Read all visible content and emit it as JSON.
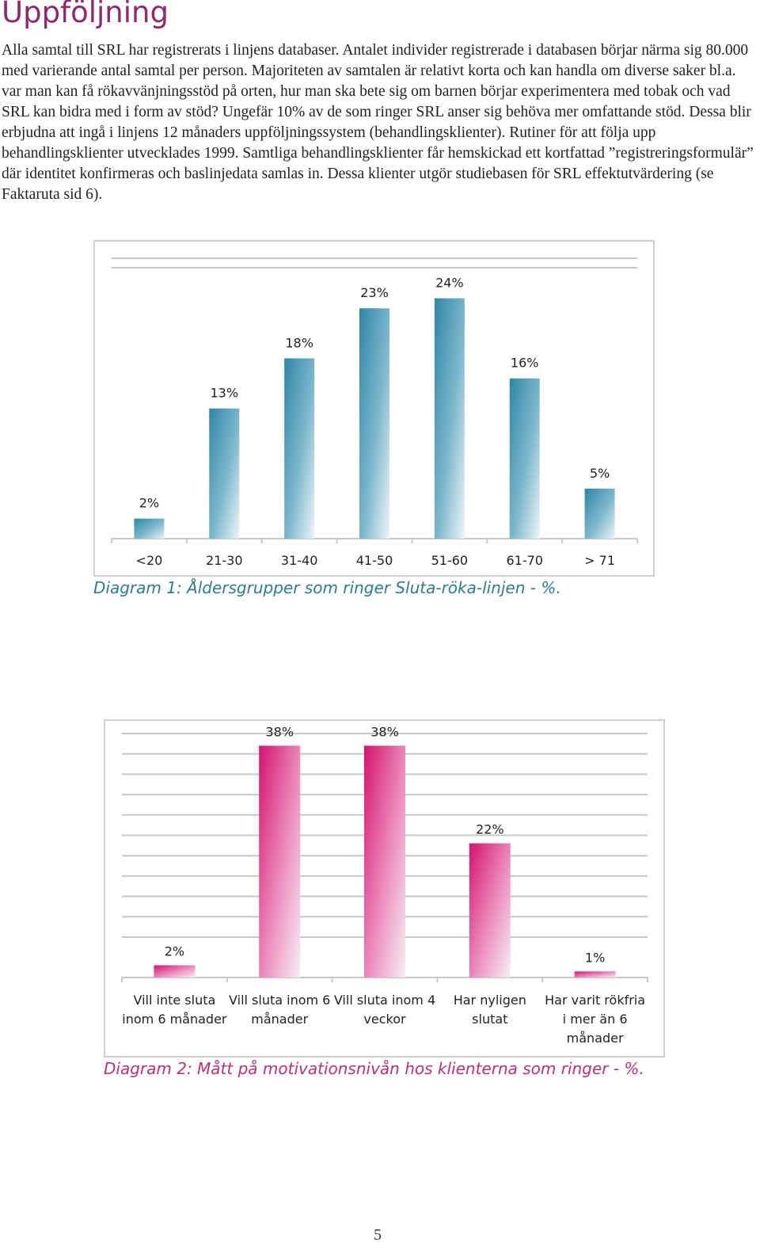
{
  "page": {
    "title": "Uppföljning",
    "paragraph": "Alla samtal till SRL har registrerats i linjens databaser. Antalet individer registrerade i databasen börjar närma sig 80.000 med varierande antal samtal per person. Majoriteten av samtalen är relativt korta och kan handla om diverse saker bl.a. var man kan få rökavvänjningsstöd på orten, hur man ska bete sig om barnen börjar experimentera med tobak och vad SRL kan bidra med i form av stöd? Ungefär 10% av de som ringer SRL anser sig behöva mer omfattande stöd. Dessa blir erbjudna att ingå i linjens 12 månaders uppföljningssystem (behandlingsklienter). Rutiner för att följa upp behandlingsklienter utvecklades 1999. Samtliga behandlingsklienter får hemskickad ett kortfattad ”registreringsformulär” där identitet konfirmeras och baslinjedata samlas in. Dessa klienter utgör studiebasen för SRL effektutvärdering (se Faktaruta sid 6).",
    "page_number": "5"
  },
  "chart_data": [
    {
      "type": "bar",
      "title": "",
      "caption": "Diagram 1: Åldersgrupper som ringer Sluta-röka-linjen - %.",
      "categories": [
        "<20",
        "21-30",
        "31-40",
        "41-50",
        "51-60",
        "61-70",
        "> 71"
      ],
      "values": [
        2,
        13,
        18,
        23,
        24,
        16,
        5
      ],
      "data_labels": [
        "2%",
        "13%",
        "18%",
        "23%",
        "24%",
        "16%",
        "5%"
      ],
      "ylim": [
        0,
        28
      ],
      "grid": true,
      "legend": "none",
      "color": "#2f86a6"
    },
    {
      "type": "bar",
      "title": "",
      "caption": "Diagram 2: Mått på motivationsnivån hos klienterna som ringer - %.",
      "categories": [
        [
          "Vill inte sluta",
          "inom 6 månader"
        ],
        [
          "Vill sluta inom 6",
          "månader"
        ],
        [
          "Vill sluta inom 4",
          "veckor"
        ],
        [
          "Har nyligen",
          "slutat"
        ],
        [
          "Har varit rökfria",
          "i mer än 6",
          "månader"
        ]
      ],
      "values": [
        2,
        38,
        38,
        22,
        1
      ],
      "data_labels": [
        "2%",
        "38%",
        "38%",
        "22%",
        "1%"
      ],
      "ylim": [
        0,
        40
      ],
      "grid": true,
      "legend": "none",
      "color": "#d4136e"
    }
  ]
}
